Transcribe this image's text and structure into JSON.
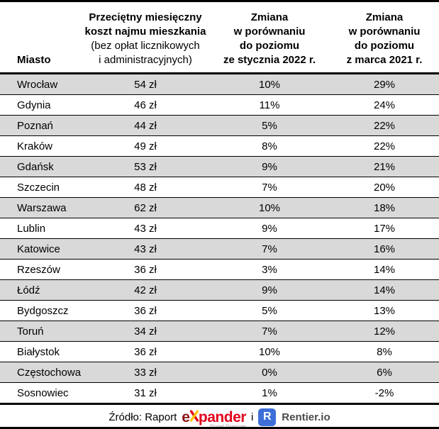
{
  "chart_data": {
    "type": "table",
    "columns": [
      {
        "id": "city",
        "lines": [
          {
            "text": "Miasto",
            "bold": true
          }
        ]
      },
      {
        "id": "cost",
        "lines": [
          {
            "text": "Przeciętny miesięczny",
            "bold": true
          },
          {
            "text": "koszt najmu mieszkania",
            "bold": true
          },
          {
            "text": "(bez opłat licznikowych",
            "bold": false
          },
          {
            "text": "i administracyjnych)",
            "bold": false
          }
        ]
      },
      {
        "id": "change_jan2022",
        "lines": [
          {
            "text": "Zmiana",
            "bold": true
          },
          {
            "text": "w porównaniu",
            "bold": true
          },
          {
            "text": "do poziomu",
            "bold": true
          },
          {
            "text": "ze stycznia 2022 r.",
            "bold": true
          }
        ]
      },
      {
        "id": "change_mar2021",
        "lines": [
          {
            "text": "Zmiana",
            "bold": true
          },
          {
            "text": "w porównaniu",
            "bold": true
          },
          {
            "text": "do poziomu",
            "bold": true
          },
          {
            "text": "z marca 2021 r.",
            "bold": true
          }
        ]
      }
    ],
    "rows": [
      {
        "city": "Wrocław",
        "cost": "54 zł",
        "change_jan2022": "10%",
        "change_mar2021": "29%"
      },
      {
        "city": "Gdynia",
        "cost": "46 zł",
        "change_jan2022": "11%",
        "change_mar2021": "24%"
      },
      {
        "city": "Poznań",
        "cost": "44 zł",
        "change_jan2022": "5%",
        "change_mar2021": "22%"
      },
      {
        "city": "Kraków",
        "cost": "49 zł",
        "change_jan2022": "8%",
        "change_mar2021": "22%"
      },
      {
        "city": "Gdańsk",
        "cost": "53 zł",
        "change_jan2022": "9%",
        "change_mar2021": "21%"
      },
      {
        "city": "Szczecin",
        "cost": "48 zł",
        "change_jan2022": "7%",
        "change_mar2021": "20%"
      },
      {
        "city": "Warszawa",
        "cost": "62 zł",
        "change_jan2022": "10%",
        "change_mar2021": "18%"
      },
      {
        "city": "Lublin",
        "cost": "43 zł",
        "change_jan2022": "9%",
        "change_mar2021": "17%"
      },
      {
        "city": "Katowice",
        "cost": "43 zł",
        "change_jan2022": "7%",
        "change_mar2021": "16%"
      },
      {
        "city": "Rzeszów",
        "cost": "36 zł",
        "change_jan2022": "3%",
        "change_mar2021": "14%"
      },
      {
        "city": "Łódź",
        "cost": "42 zł",
        "change_jan2022": "9%",
        "change_mar2021": "14%"
      },
      {
        "city": "Bydgoszcz",
        "cost": "36 zł",
        "change_jan2022": "5%",
        "change_mar2021": "13%"
      },
      {
        "city": "Toruń",
        "cost": "34 zł",
        "change_jan2022": "7%",
        "change_mar2021": "12%"
      },
      {
        "city": "Białystok",
        "cost": "36 zł",
        "change_jan2022": "10%",
        "change_mar2021": "8%"
      },
      {
        "city": "Częstochowa",
        "cost": "33 zł",
        "change_jan2022": "0%",
        "change_mar2021": "6%"
      },
      {
        "city": "Sosnowiec",
        "cost": "31 zł",
        "change_jan2022": "1%",
        "change_mar2021": "-2%"
      }
    ]
  },
  "footer": {
    "source_prefix": "Źródło: Raport",
    "conjunction": "i",
    "expander_logo": {
      "text_e": "e",
      "text_rest": "pander",
      "subtext": "Ekspert Finansowy"
    },
    "rentier_logo": {
      "badge_letter": "R",
      "label": "Rentier.io"
    }
  },
  "colors": {
    "border": "#000000",
    "row_stripe": "#D9D9D9",
    "expander_dark_red": "#8A1416",
    "expander_red": "#E2001A",
    "expander_yellow": "#FFC20E",
    "rentier_blue": "#3E6FD9",
    "rentier_text": "#4A4A4A",
    "logo_subtext_gray": "#9B9B9B"
  }
}
